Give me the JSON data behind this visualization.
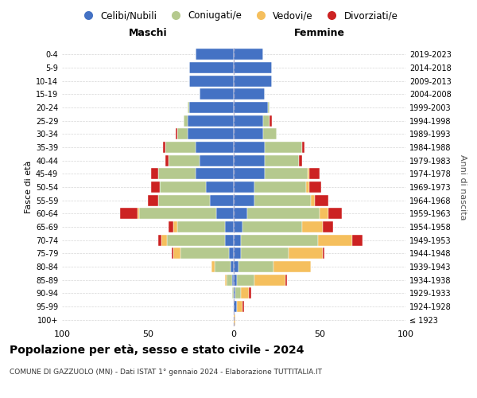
{
  "age_groups": [
    "100+",
    "95-99",
    "90-94",
    "85-89",
    "80-84",
    "75-79",
    "70-74",
    "65-69",
    "60-64",
    "55-59",
    "50-54",
    "45-49",
    "40-44",
    "35-39",
    "30-34",
    "25-29",
    "20-24",
    "15-19",
    "10-14",
    "5-9",
    "0-4"
  ],
  "birth_years": [
    "≤ 1923",
    "1924-1928",
    "1929-1933",
    "1934-1938",
    "1939-1943",
    "1944-1948",
    "1949-1953",
    "1954-1958",
    "1959-1963",
    "1964-1968",
    "1969-1973",
    "1974-1978",
    "1979-1983",
    "1984-1988",
    "1989-1993",
    "1994-1998",
    "1999-2003",
    "2004-2008",
    "2009-2013",
    "2014-2018",
    "2019-2023"
  ],
  "colors": {
    "celibi": "#4472c4",
    "coniugati": "#b5c98e",
    "vedovi": "#f5bf5d",
    "divorziati": "#cc2222"
  },
  "males": {
    "celibi": [
      0,
      0,
      0,
      1,
      2,
      3,
      5,
      5,
      10,
      14,
      16,
      22,
      20,
      22,
      27,
      27,
      26,
      20,
      26,
      26,
      22
    ],
    "coniugati": [
      0,
      0,
      1,
      3,
      9,
      28,
      34,
      28,
      45,
      30,
      27,
      22,
      18,
      18,
      6,
      2,
      1,
      0,
      0,
      0,
      0
    ],
    "vedovi": [
      0,
      0,
      0,
      1,
      2,
      4,
      3,
      2,
      1,
      0,
      0,
      0,
      0,
      0,
      0,
      0,
      0,
      0,
      0,
      0,
      0
    ],
    "divorziati": [
      0,
      0,
      0,
      0,
      0,
      1,
      2,
      3,
      10,
      6,
      5,
      4,
      2,
      1,
      1,
      0,
      0,
      0,
      0,
      0,
      0
    ]
  },
  "females": {
    "celibi": [
      0,
      2,
      1,
      2,
      3,
      4,
      4,
      5,
      8,
      12,
      12,
      18,
      18,
      18,
      17,
      17,
      20,
      18,
      22,
      22,
      17
    ],
    "coniugati": [
      0,
      0,
      3,
      10,
      20,
      28,
      45,
      35,
      42,
      33,
      30,
      25,
      20,
      22,
      8,
      4,
      1,
      0,
      0,
      0,
      0
    ],
    "vedovi": [
      1,
      3,
      5,
      18,
      22,
      20,
      20,
      12,
      5,
      2,
      2,
      1,
      0,
      0,
      0,
      0,
      0,
      0,
      0,
      0,
      0
    ],
    "divorziati": [
      0,
      1,
      1,
      1,
      0,
      1,
      6,
      6,
      8,
      8,
      7,
      6,
      2,
      1,
      0,
      1,
      0,
      0,
      0,
      0,
      0
    ]
  },
  "title": "Popolazione per età, sesso e stato civile - 2024",
  "subtitle": "COMUNE DI GAZZUOLO (MN) - Dati ISTAT 1° gennaio 2024 - Elaborazione TUTTITALIA.IT",
  "xlabel_left": "Maschi",
  "xlabel_right": "Femmine",
  "ylabel_left": "Fasce di età",
  "ylabel_right": "Anni di nascita",
  "xlim": 100,
  "legend_labels": [
    "Celibi/Nubili",
    "Coniugati/e",
    "Vedovi/e",
    "Divorziati/e"
  ],
  "background_color": "#ffffff",
  "grid_color": "#cccccc"
}
